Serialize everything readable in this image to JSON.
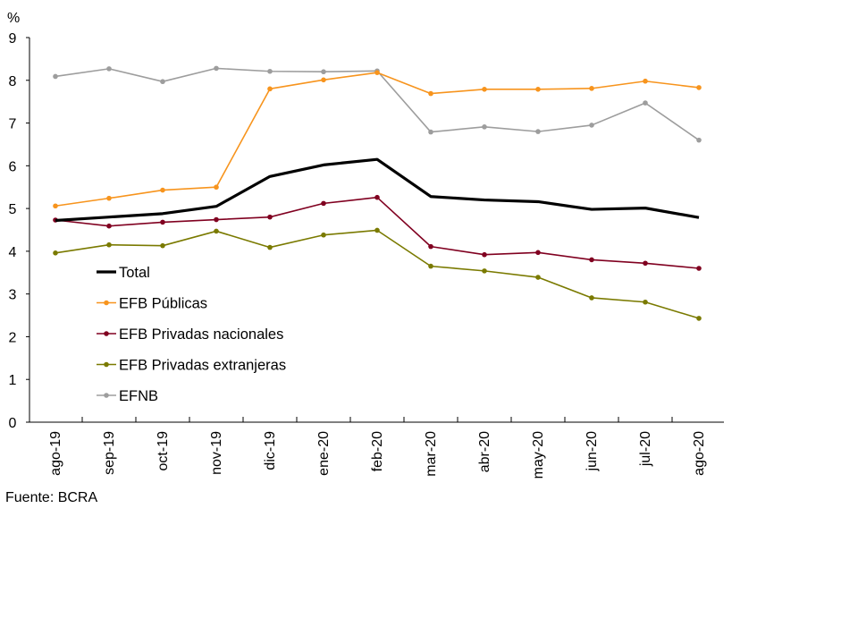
{
  "chart_data": {
    "type": "line",
    "y_unit_label": "%",
    "ylim": [
      0,
      9
    ],
    "y_ticks": [
      0,
      1,
      2,
      3,
      4,
      5,
      6,
      7,
      8,
      9
    ],
    "categories": [
      "ago-19",
      "sep-19",
      "oct-19",
      "nov-19",
      "dic-19",
      "ene-20",
      "feb-20",
      "mar-20",
      "abr-20",
      "may-20",
      "jun-20",
      "jul-20",
      "ago-20"
    ],
    "series": [
      {
        "name": "Total",
        "color": "#000000",
        "markers": false,
        "values": [
          4.72,
          4.8,
          4.88,
          5.05,
          5.75,
          6.02,
          6.15,
          5.28,
          5.2,
          5.16,
          4.98,
          5.01,
          4.79
        ]
      },
      {
        "name": "EFB Públicas",
        "color": "#f7941d",
        "markers": true,
        "values": [
          5.06,
          5.24,
          5.43,
          5.5,
          7.8,
          8.01,
          8.18,
          7.69,
          7.79,
          7.79,
          7.81,
          7.98,
          7.83
        ]
      },
      {
        "name": "EFB Privadas nacionales",
        "color": "#800020",
        "markers": true,
        "values": [
          4.73,
          4.59,
          4.68,
          4.74,
          4.8,
          5.12,
          5.26,
          4.11,
          3.92,
          3.97,
          3.8,
          3.72,
          3.6
        ]
      },
      {
        "name": "EFB Privadas extranjeras",
        "color": "#7a7a00",
        "markers": true,
        "values": [
          3.96,
          4.15,
          4.13,
          4.47,
          4.09,
          4.38,
          4.49,
          3.65,
          3.54,
          3.39,
          2.91,
          2.81,
          2.43
        ]
      },
      {
        "name": "EFNB",
        "color": "#9d9d9d",
        "markers": true,
        "values": [
          8.09,
          8.27,
          7.97,
          8.28,
          8.21,
          8.2,
          8.22,
          6.79,
          6.91,
          6.8,
          6.95,
          7.47,
          6.6
        ]
      }
    ],
    "legend_position": "left-center",
    "grid": false,
    "source": "Fuente: BCRA"
  }
}
